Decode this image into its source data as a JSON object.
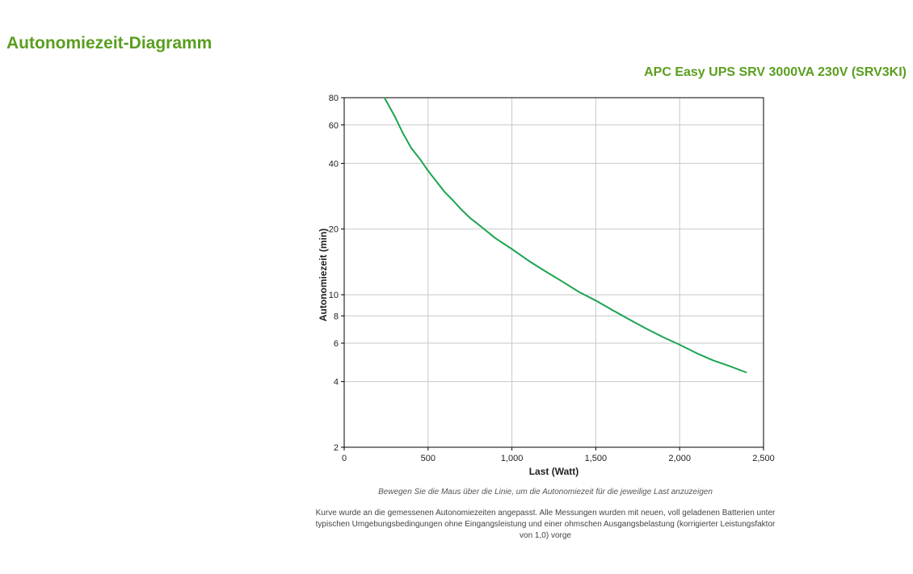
{
  "page": {
    "title": "Autonomiezeit-Diagramm",
    "product": "APC Easy UPS SRV 3000VA 230V (SRV3KI)",
    "hint": "Bewegen Sie die Maus über die Linie, um die Autonomiezeit für die jeweilige Last anzuzeigen",
    "note": "Kurve wurde an die gemessenen Autonomiezeiten angepasst. Alle Messungen wurden mit neuen, voll geladenen Batterien unter typischen Umgebungsbedingungen ohne Eingangsleistung und einer ohmschen Ausgangsbelastung (korrigierter Leistungsfaktor von 1,0) vorge"
  },
  "chart_data": {
    "type": "line",
    "title": "",
    "xlabel": "Last (Watt)",
    "ylabel": "Autonomiezeit (min)",
    "xlim": [
      0,
      2500
    ],
    "ylim": [
      2,
      80
    ],
    "y_scale": "log",
    "grid": true,
    "legend": "none",
    "x_ticks": [
      0,
      500,
      1000,
      1500,
      2000,
      2500
    ],
    "x_tick_labels": [
      "0",
      "500",
      "1,000",
      "1,500",
      "2,000",
      "2,500"
    ],
    "y_ticks": [
      2,
      4,
      6,
      8,
      10,
      20,
      40,
      60,
      80
    ],
    "y_tick_labels": [
      "2",
      "4",
      "6",
      "8",
      "10",
      "20",
      "40",
      "60",
      "80"
    ],
    "line_color": "#1aa550",
    "series": [
      {
        "name": "",
        "x": [
          240,
          300,
          350,
          400,
          450,
          500,
          550,
          600,
          650,
          700,
          750,
          800,
          900,
          1000,
          1100,
          1200,
          1300,
          1400,
          1500,
          1600,
          1700,
          1800,
          1900,
          2000,
          2100,
          2200,
          2300,
          2400
        ],
        "y": [
          80,
          66,
          55,
          47,
          42,
          37,
          33,
          29.5,
          27,
          24.5,
          22.5,
          21,
          18.2,
          16.2,
          14.3,
          12.8,
          11.5,
          10.3,
          9.4,
          8.5,
          7.7,
          7.0,
          6.4,
          5.9,
          5.4,
          5.0,
          4.7,
          4.4
        ]
      }
    ]
  }
}
